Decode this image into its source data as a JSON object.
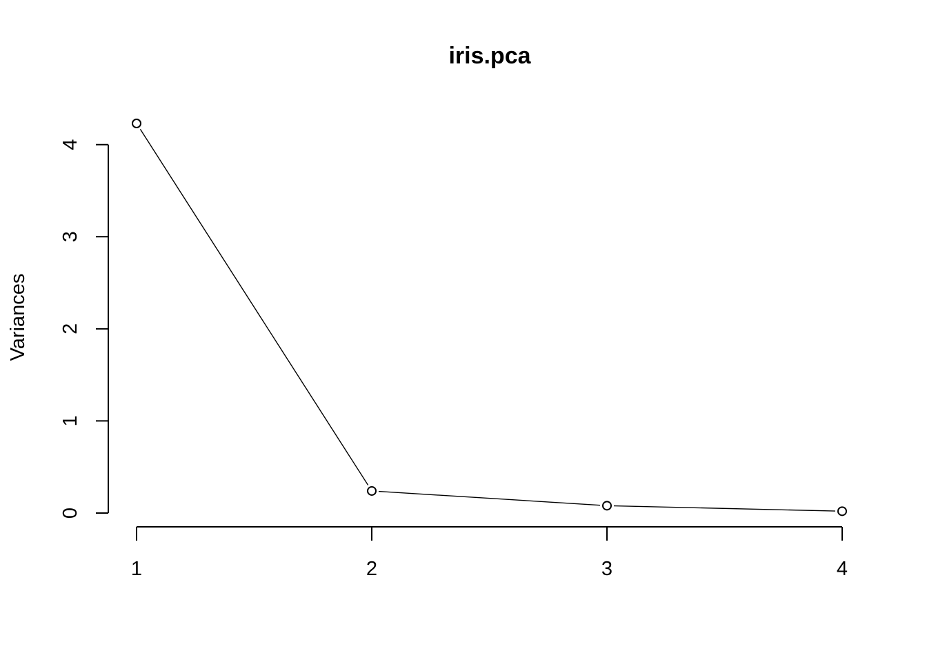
{
  "chart_data": {
    "type": "line",
    "title": "iris.pca",
    "xlabel": "",
    "ylabel": "Variances",
    "x": [
      1,
      2,
      3,
      4
    ],
    "values": [
      4.23,
      0.24,
      0.08,
      0.02
    ],
    "xlim": [
      1,
      4
    ],
    "ylim": [
      0,
      4.23
    ],
    "yticks": [
      0,
      1,
      2,
      3,
      4
    ],
    "xticks": [
      1,
      2,
      3,
      4
    ],
    "grid": false,
    "marker": "open-circle",
    "line_color": "#000000"
  }
}
